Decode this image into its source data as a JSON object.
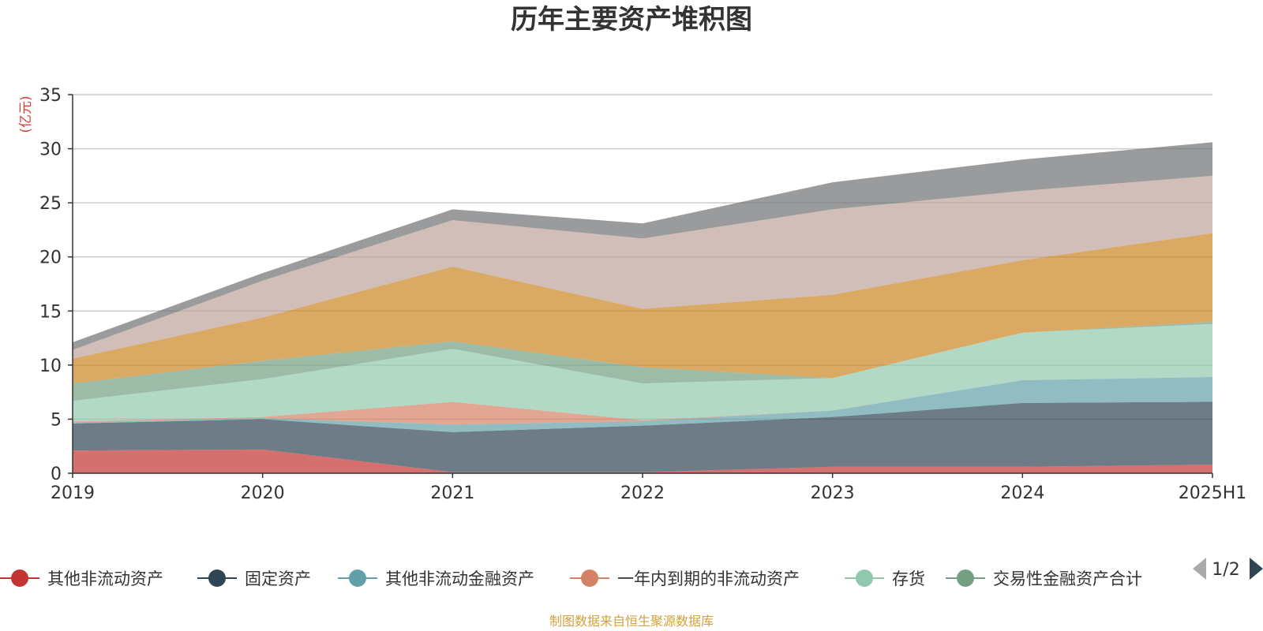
{
  "chart_data": {
    "type": "area",
    "stacked": true,
    "title": "历年主要资产堆积图",
    "unit_label": "(亿元)",
    "categories": [
      "2019",
      "2020",
      "2021",
      "2022",
      "2023",
      "2024",
      "2025H1"
    ],
    "ylim": [
      0,
      35
    ],
    "yticks": [
      0,
      5,
      10,
      15,
      20,
      25,
      30,
      35
    ],
    "grid": true,
    "legend_position": "bottom",
    "legend_page": "1/2",
    "series": [
      {
        "name": "其他非流动资产",
        "color": "#c23531",
        "legend": true,
        "values": [
          2.1,
          2.2,
          0.1,
          0.1,
          0.6,
          0.6,
          0.8
        ]
      },
      {
        "name": "固定资产",
        "color": "#2f4554",
        "legend": true,
        "values": [
          2.5,
          2.8,
          3.7,
          4.3,
          4.6,
          5.9,
          5.8
        ]
      },
      {
        "name": "其他非流动金融资产",
        "color": "#61a0a8",
        "legend": true,
        "values": [
          0.1,
          0.1,
          0.7,
          0.4,
          0.6,
          2.1,
          2.3
        ]
      },
      {
        "name": "一年内到期的非流动资产",
        "color": "#d48265",
        "legend": true,
        "values": [
          0.1,
          0.1,
          2.1,
          0.1,
          0.0,
          0.0,
          0.0
        ]
      },
      {
        "name": "存货",
        "color": "#91c7ae",
        "legend": true,
        "values": [
          1.9,
          3.5,
          4.9,
          3.4,
          3.0,
          4.4,
          4.9
        ]
      },
      {
        "name": "交易性金融资产合计",
        "color": "#749f83",
        "legend": true,
        "values": [
          1.6,
          1.7,
          0.7,
          1.5,
          0.0,
          0.0,
          0.2
        ]
      },
      {
        "name": "",
        "color": "#ca8622",
        "legend": false,
        "values": [
          2.3,
          4.0,
          6.9,
          5.4,
          7.7,
          6.7,
          8.2
        ]
      },
      {
        "name": "",
        "color": "#bda29a",
        "legend": false,
        "values": [
          0.8,
          3.4,
          4.3,
          6.5,
          7.9,
          6.4,
          5.3
        ]
      },
      {
        "name": "",
        "color": "#6e7074",
        "legend": false,
        "values": [
          0.7,
          0.7,
          1.0,
          1.4,
          2.5,
          2.9,
          3.1
        ]
      }
    ]
  },
  "source_note": "制图数据来自恒生聚源数据库"
}
